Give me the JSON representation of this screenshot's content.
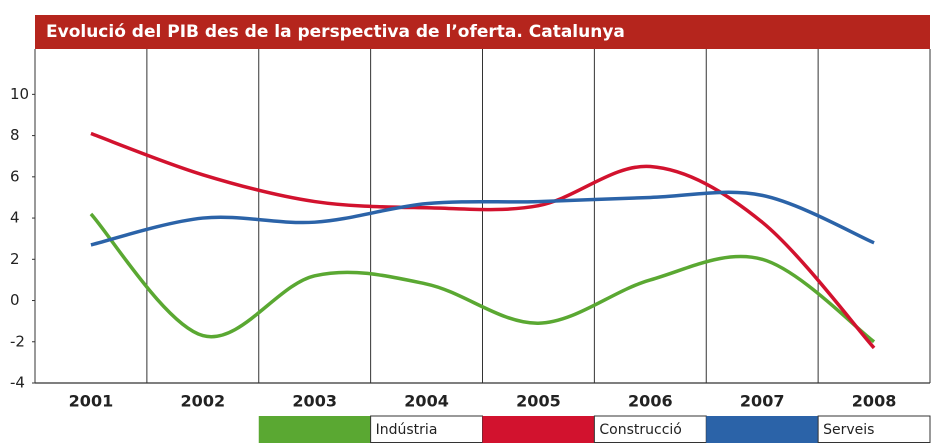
{
  "chart_data": {
    "type": "line",
    "title": "Evolució del PIB des de la perspectiva de l’oferta. Catalunya",
    "categories": [
      "2001",
      "2002",
      "2003",
      "2004",
      "2005",
      "2006",
      "2007",
      "2008"
    ],
    "series": [
      {
        "name": "Indústria",
        "color": "#5aa832",
        "values": [
          4.2,
          -1.7,
          1.2,
          0.8,
          -1.1,
          1.0,
          2.0,
          -2.0
        ]
      },
      {
        "name": "Construcció",
        "color": "#d2122e",
        "values": [
          8.1,
          6.1,
          4.8,
          4.5,
          4.6,
          6.5,
          3.8,
          -2.3
        ]
      },
      {
        "name": "Serveis",
        "color": "#2b63a8",
        "values": [
          2.7,
          4.0,
          3.8,
          4.7,
          4.8,
          5.0,
          5.1,
          2.8
        ]
      }
    ],
    "ylim": [
      -4,
      12.2
    ],
    "yticks": [
      -4,
      -2,
      0,
      2,
      4,
      6,
      8,
      10
    ],
    "grid": true,
    "legend": "bottom"
  }
}
